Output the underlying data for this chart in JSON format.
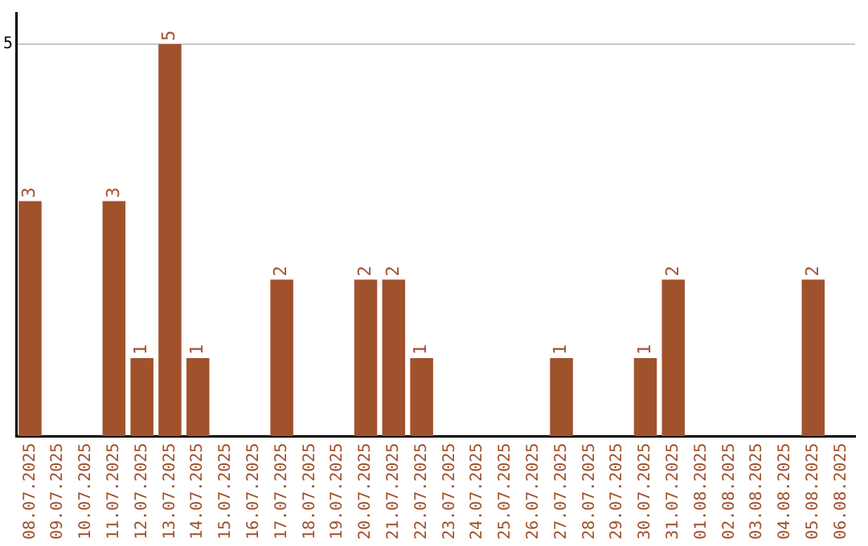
{
  "chart_data": {
    "type": "bar",
    "categories": [
      "08.07.2025",
      "09.07.2025",
      "10.07.2025",
      "11.07.2025",
      "12.07.2025",
      "13.07.2025",
      "14.07.2025",
      "15.07.2025",
      "16.07.2025",
      "17.07.2025",
      "18.07.2025",
      "19.07.2025",
      "20.07.2025",
      "21.07.2025",
      "22.07.2025",
      "23.07.2025",
      "24.07.2025",
      "25.07.2025",
      "26.07.2025",
      "27.07.2025",
      "28.07.2025",
      "29.07.2025",
      "30.07.2025",
      "31.07.2025",
      "01.08.2025",
      "02.08.2025",
      "03.08.2025",
      "04.08.2025",
      "05.08.2025",
      "06.08.2025"
    ],
    "values": [
      3,
      0,
      0,
      3,
      1,
      5,
      1,
      0,
      0,
      2,
      0,
      0,
      2,
      2,
      1,
      0,
      0,
      0,
      0,
      1,
      0,
      0,
      1,
      2,
      0,
      0,
      0,
      0,
      2,
      0
    ],
    "value_labels": [
      "3",
      null,
      null,
      "3",
      "1",
      "5",
      "1",
      null,
      null,
      "2",
      null,
      null,
      "2",
      "2",
      "1",
      null,
      null,
      null,
      null,
      "1",
      null,
      null,
      "1",
      "2",
      null,
      null,
      null,
      null,
      "2",
      null
    ],
    "color": "#a0522d",
    "ylim": [
      0,
      5.4
    ],
    "yticks": [
      5
    ],
    "grid": "y",
    "legend": false
  }
}
